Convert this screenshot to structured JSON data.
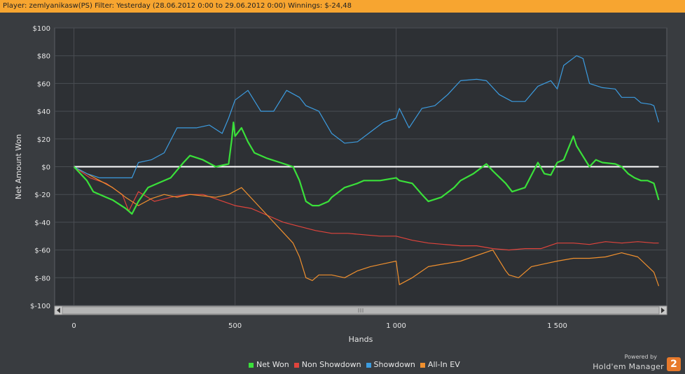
{
  "header": {
    "title": "Player: zemlyanikasw(PS) Filter: Yesterday (28.06.2012 0:00 to 29.06.2012 0:00) Winnings: $-24,48"
  },
  "legend": [
    {
      "label": "Net Won",
      "color": "#3ae03a"
    },
    {
      "label": "Non Showdown",
      "color": "#e0443c"
    },
    {
      "label": "Showdown",
      "color": "#3c9ce0"
    },
    {
      "label": "All-In EV",
      "color": "#f0902e"
    }
  ],
  "brand": {
    "powered_by": "Powered by",
    "name": "Hold'em Manager",
    "logo_text": "2"
  },
  "chart_data": {
    "type": "line",
    "title": "",
    "xlabel": "Hands",
    "ylabel": "Net Amount Won",
    "xlim": [
      -60,
      1840
    ],
    "ylim": [
      -100,
      100
    ],
    "xticks": [
      0,
      500,
      1000,
      1500
    ],
    "xtick_labels": [
      "0",
      "500",
      "1 000",
      "1 500"
    ],
    "yticks": [
      100,
      80,
      60,
      40,
      20,
      0,
      -20,
      -40,
      -60,
      -80,
      -100
    ],
    "ytick_labels": [
      "$100",
      "$80",
      "$60",
      "$40",
      "$20",
      "$0",
      "$-20",
      "$-40",
      "$-60",
      "$-80",
      "$-100"
    ],
    "grid": true,
    "zero_line": true,
    "legend_position": "bottom",
    "series": [
      {
        "name": "Net Won",
        "color": "#3ae03a",
        "x": [
          0,
          20,
          40,
          60,
          80,
          100,
          120,
          140,
          160,
          180,
          200,
          230,
          260,
          300,
          340,
          360,
          400,
          440,
          480,
          490,
          495,
          500,
          520,
          540,
          560,
          580,
          600,
          640,
          680,
          700,
          720,
          740,
          760,
          790,
          800,
          840,
          880,
          900,
          950,
          1000,
          1010,
          1050,
          1080,
          1100,
          1140,
          1180,
          1200,
          1240,
          1280,
          1300,
          1340,
          1360,
          1400,
          1440,
          1460,
          1480,
          1500,
          1520,
          1550,
          1560,
          1600,
          1620,
          1640,
          1680,
          1700,
          1720,
          1740,
          1760,
          1780,
          1800,
          1815
        ],
        "y": [
          0,
          -5,
          -10,
          -18,
          -20,
          -22,
          -24,
          -27,
          -30,
          -34,
          -25,
          -15,
          -12,
          -8,
          3,
          8,
          5,
          0,
          2,
          20,
          32,
          22,
          28,
          18,
          10,
          8,
          6,
          3,
          0,
          -10,
          -25,
          -28,
          -28,
          -25,
          -22,
          -15,
          -12,
          -10,
          -10,
          -8,
          -10,
          -12,
          -20,
          -25,
          -22,
          -15,
          -10,
          -5,
          2,
          -3,
          -12,
          -18,
          -15,
          3,
          -5,
          -6,
          3,
          5,
          22,
          15,
          0,
          5,
          3,
          2,
          0,
          -5,
          -8,
          -10,
          -10,
          -12,
          -24
        ]
      },
      {
        "name": "Non Showdown",
        "color": "#e0443c",
        "x": [
          0,
          50,
          100,
          150,
          170,
          200,
          250,
          300,
          350,
          400,
          450,
          500,
          550,
          600,
          650,
          700,
          750,
          800,
          850,
          900,
          950,
          1000,
          1050,
          1100,
          1150,
          1200,
          1250,
          1300,
          1350,
          1400,
          1450,
          1500,
          1550,
          1600,
          1650,
          1700,
          1750,
          1800,
          1815
        ],
        "y": [
          0,
          -8,
          -12,
          -20,
          -32,
          -18,
          -25,
          -22,
          -20,
          -20,
          -24,
          -28,
          -30,
          -35,
          -40,
          -43,
          -46,
          -48,
          -48,
          -49,
          -50,
          -50,
          -53,
          -55,
          -56,
          -57,
          -57,
          -59,
          -60,
          -59,
          -59,
          -55,
          -55,
          -56,
          -54,
          -55,
          -54,
          -55,
          -55
        ]
      },
      {
        "name": "Showdown",
        "color": "#3c9ce0",
        "x": [
          0,
          40,
          80,
          120,
          180,
          200,
          240,
          280,
          320,
          380,
          420,
          460,
          480,
          500,
          540,
          580,
          620,
          660,
          700,
          720,
          760,
          800,
          840,
          880,
          920,
          960,
          1000,
          1010,
          1040,
          1080,
          1120,
          1160,
          1200,
          1250,
          1280,
          1320,
          1360,
          1400,
          1440,
          1480,
          1500,
          1520,
          1560,
          1580,
          1600,
          1640,
          1680,
          1700,
          1740,
          1760,
          1790,
          1800,
          1815
        ],
        "y": [
          0,
          -5,
          -8,
          -8,
          -8,
          3,
          5,
          10,
          28,
          28,
          30,
          24,
          35,
          48,
          55,
          40,
          40,
          55,
          50,
          44,
          40,
          24,
          17,
          18,
          25,
          32,
          35,
          42,
          28,
          42,
          44,
          52,
          62,
          63,
          62,
          52,
          47,
          47,
          58,
          62,
          56,
          73,
          80,
          78,
          60,
          57,
          56,
          50,
          50,
          46,
          45,
          44,
          32
        ]
      },
      {
        "name": "All-In EV",
        "color": "#f0902e",
        "x": [
          0,
          40,
          80,
          120,
          160,
          200,
          240,
          280,
          320,
          360,
          400,
          440,
          480,
          520,
          560,
          600,
          640,
          680,
          700,
          720,
          740,
          760,
          800,
          840,
          880,
          920,
          960,
          1000,
          1010,
          1050,
          1100,
          1150,
          1200,
          1250,
          1300,
          1340,
          1350,
          1380,
          1420,
          1460,
          1500,
          1550,
          1600,
          1650,
          1700,
          1750,
          1800,
          1815
        ],
        "y": [
          0,
          -5,
          -10,
          -15,
          -22,
          -28,
          -23,
          -20,
          -22,
          -20,
          -21,
          -22,
          -20,
          -15,
          -25,
          -35,
          -45,
          -55,
          -65,
          -80,
          -82,
          -78,
          -78,
          -80,
          -75,
          -72,
          -70,
          -68,
          -85,
          -80,
          -72,
          -70,
          -68,
          -64,
          -60,
          -75,
          -78,
          -80,
          -72,
          -70,
          -68,
          -66,
          -66,
          -65,
          -62,
          -65,
          -76,
          -86
        ]
      }
    ]
  }
}
